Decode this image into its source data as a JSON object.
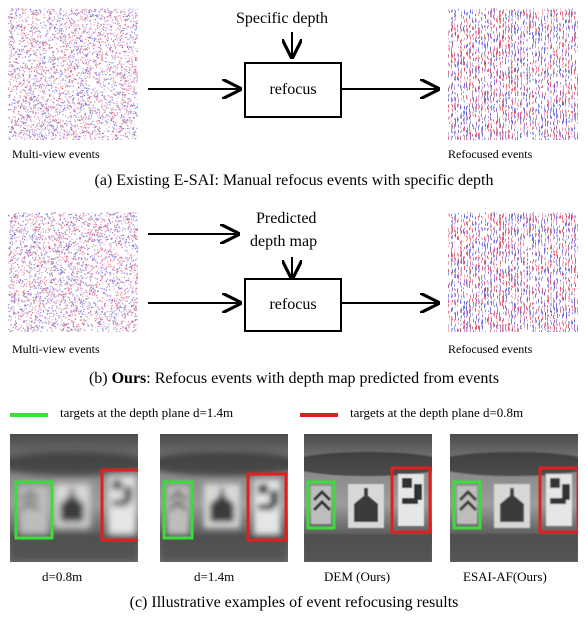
{
  "panel_a": {
    "input_label": "Multi-view events",
    "output_label": "Refocused events",
    "depth_label": "Specific depth",
    "box_label": "refocus",
    "caption": "(a) Existing E-SAI: Manual refocus events with specific depth"
  },
  "panel_b": {
    "input_label": "Multi-view events",
    "output_label": "Refocused events",
    "depth_label_line1": "Predicted",
    "depth_label_line2": "depth map",
    "box_label": "refocus",
    "caption_prefix": "(b) ",
    "caption_bold": "Ours",
    "caption_rest": ": Refocus events with depth map predicted from events"
  },
  "panel_c": {
    "legend_green": "targets at the depth plane d=1.4m",
    "legend_red": "targets at the depth plane d=0.8m",
    "image_labels": [
      "d=0.8m",
      "d=1.4m",
      "DEM (Ours)",
      "ESAI-AF(Ours)"
    ],
    "caption": "(c)  Illustrative examples of event refocusing results"
  },
  "colors": {
    "green": "#3ddc3d",
    "red": "#e02020",
    "event_red": "#e0506a",
    "event_blue": "#5a5ad8"
  }
}
